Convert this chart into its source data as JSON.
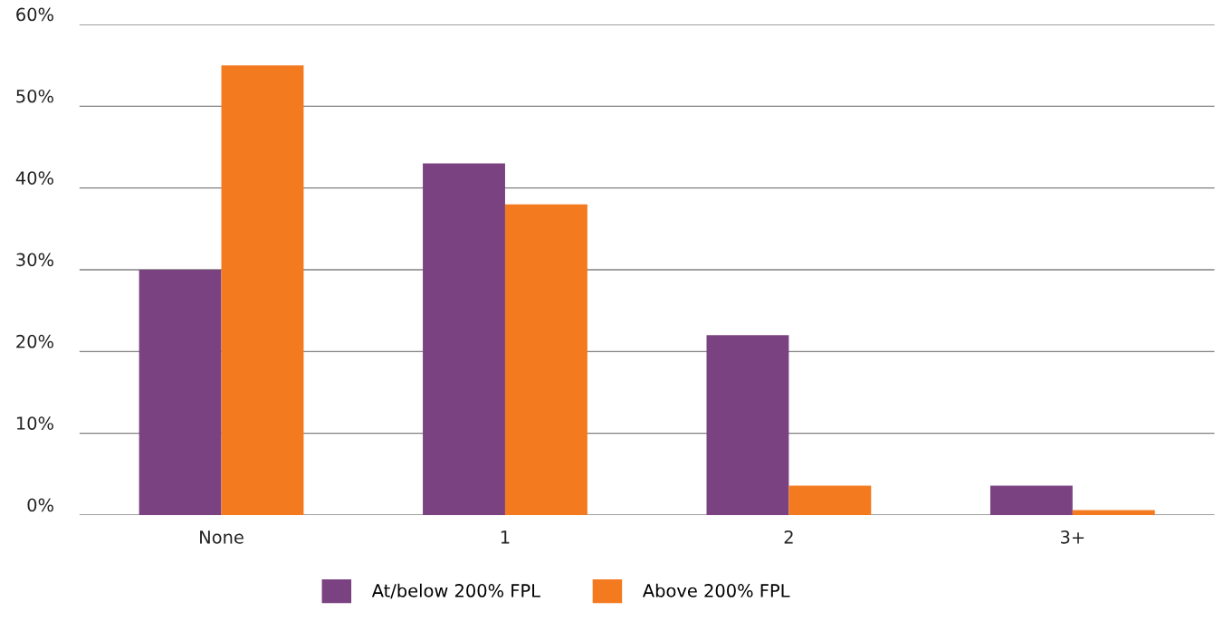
{
  "chart_data": {
    "type": "bar",
    "categories": [
      "None",
      "1",
      "2",
      "3+"
    ],
    "series": [
      {
        "name": "At/below 200% FPL",
        "color": "#7b4282",
        "values": [
          30,
          43,
          22,
          3.6
        ]
      },
      {
        "name": "Above 200% FPL",
        "color": "#f47a20",
        "values": [
          55,
          38,
          3.6,
          0.6
        ]
      }
    ],
    "ylim": [
      0,
      60
    ],
    "yticks": [
      {
        "value": 0,
        "label": "0%"
      },
      {
        "value": 10,
        "label": "10%"
      },
      {
        "value": 20,
        "label": "20%"
      },
      {
        "value": 30,
        "label": "30%"
      },
      {
        "value": 40,
        "label": "40%"
      },
      {
        "value": 50,
        "label": "50%"
      },
      {
        "value": 60,
        "label": "60%"
      }
    ],
    "grid": "y",
    "legend": "bottom"
  }
}
